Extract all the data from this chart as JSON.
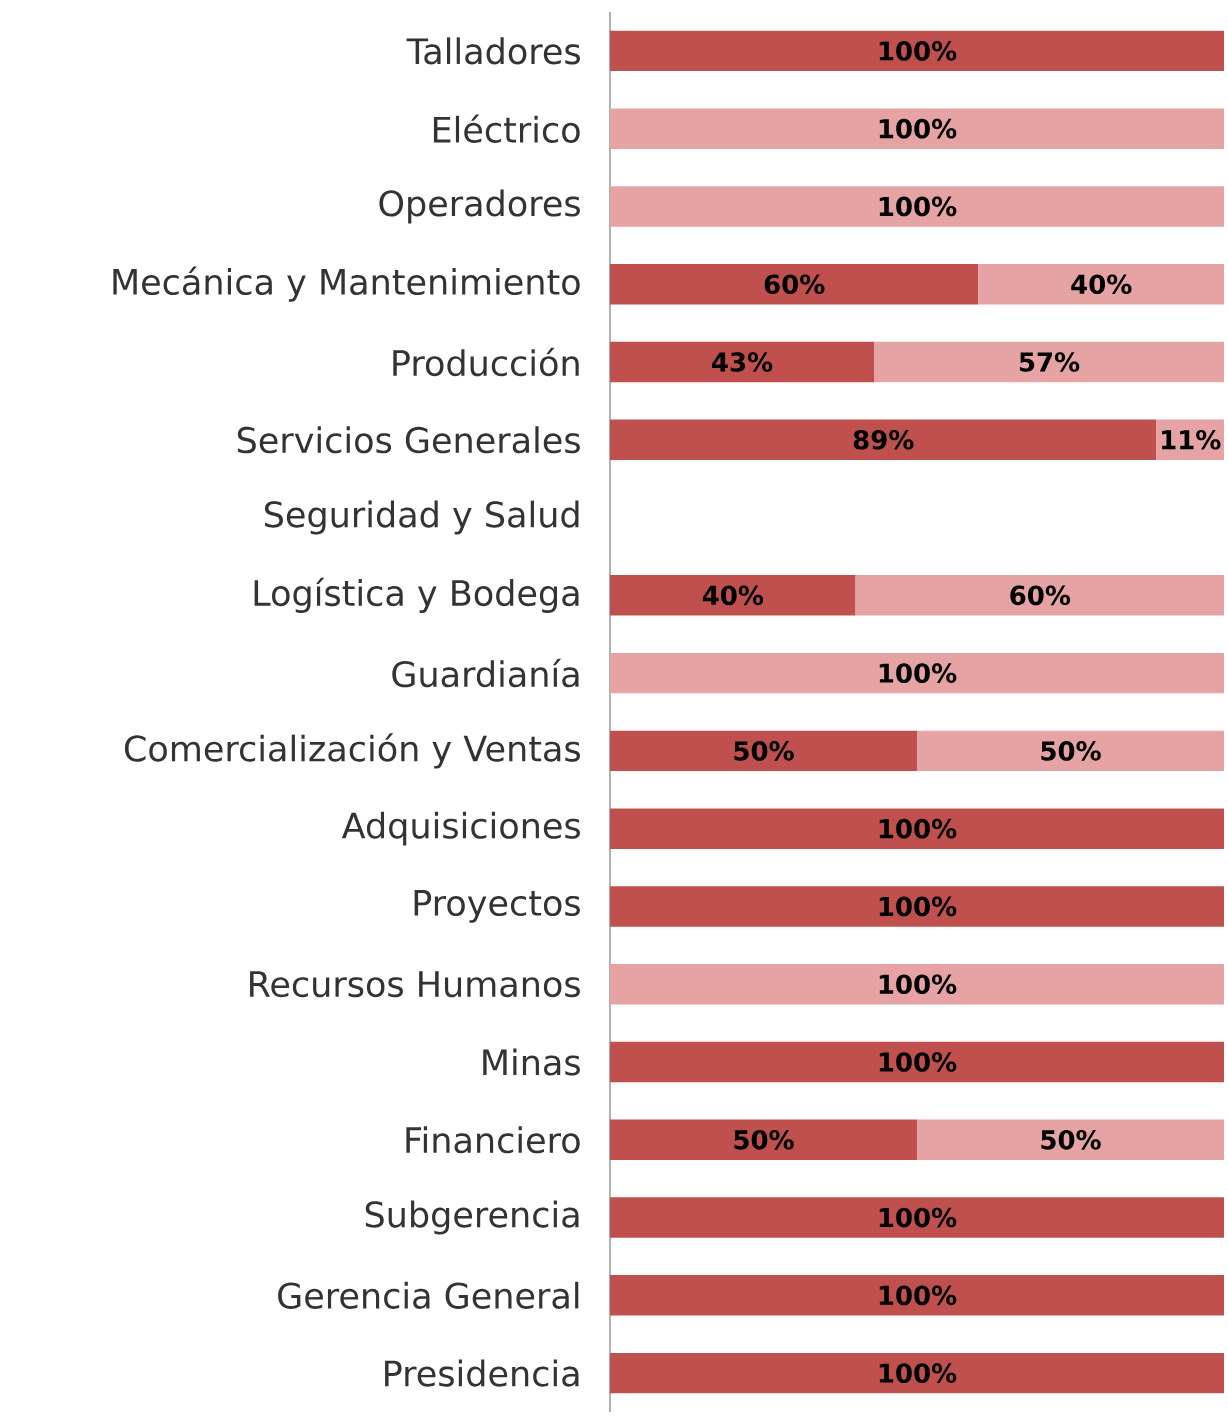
{
  "chart_data": {
    "type": "bar",
    "orientation": "horizontal",
    "stacked": true,
    "categories": [
      "Talladores",
      "Eléctrico",
      "Operadores",
      "Mecánica y Mantenimiento",
      "Producción",
      "Servicios Generales",
      "Seguridad y Salud",
      "Logística y Bodega",
      "Guardianía",
      "Comercialización y Ventas",
      "Adquisiciones",
      "Proyectos",
      "Recursos Humanos",
      "Minas",
      "Financiero",
      "Subgerencia",
      "Gerencia General",
      "Presidencia"
    ],
    "series": [
      {
        "color": "#c0504d",
        "values": [
          100,
          null,
          null,
          60,
          43,
          89,
          null,
          40,
          null,
          50,
          100,
          100,
          null,
          100,
          50,
          100,
          100,
          100
        ],
        "value_labels": [
          "100%",
          null,
          null,
          "60%",
          "43%",
          "89%",
          null,
          "40%",
          null,
          "50%",
          "100%",
          "100%",
          null,
          "100%",
          "50%",
          "100%",
          "100%",
          "100%"
        ]
      },
      {
        "color": "#e6a3a3",
        "values": [
          null,
          100,
          100,
          40,
          57,
          11,
          null,
          60,
          100,
          50,
          null,
          null,
          100,
          null,
          50,
          null,
          null,
          null
        ],
        "value_labels": [
          null,
          "100%",
          "100%",
          "40%",
          "57%",
          "11%",
          null,
          "60%",
          "100%",
          "50%",
          null,
          null,
          "100%",
          null,
          "50%",
          null,
          null,
          null
        ]
      }
    ],
    "xlim": [
      0,
      100
    ],
    "tick_labels": "y",
    "grid": false
  }
}
